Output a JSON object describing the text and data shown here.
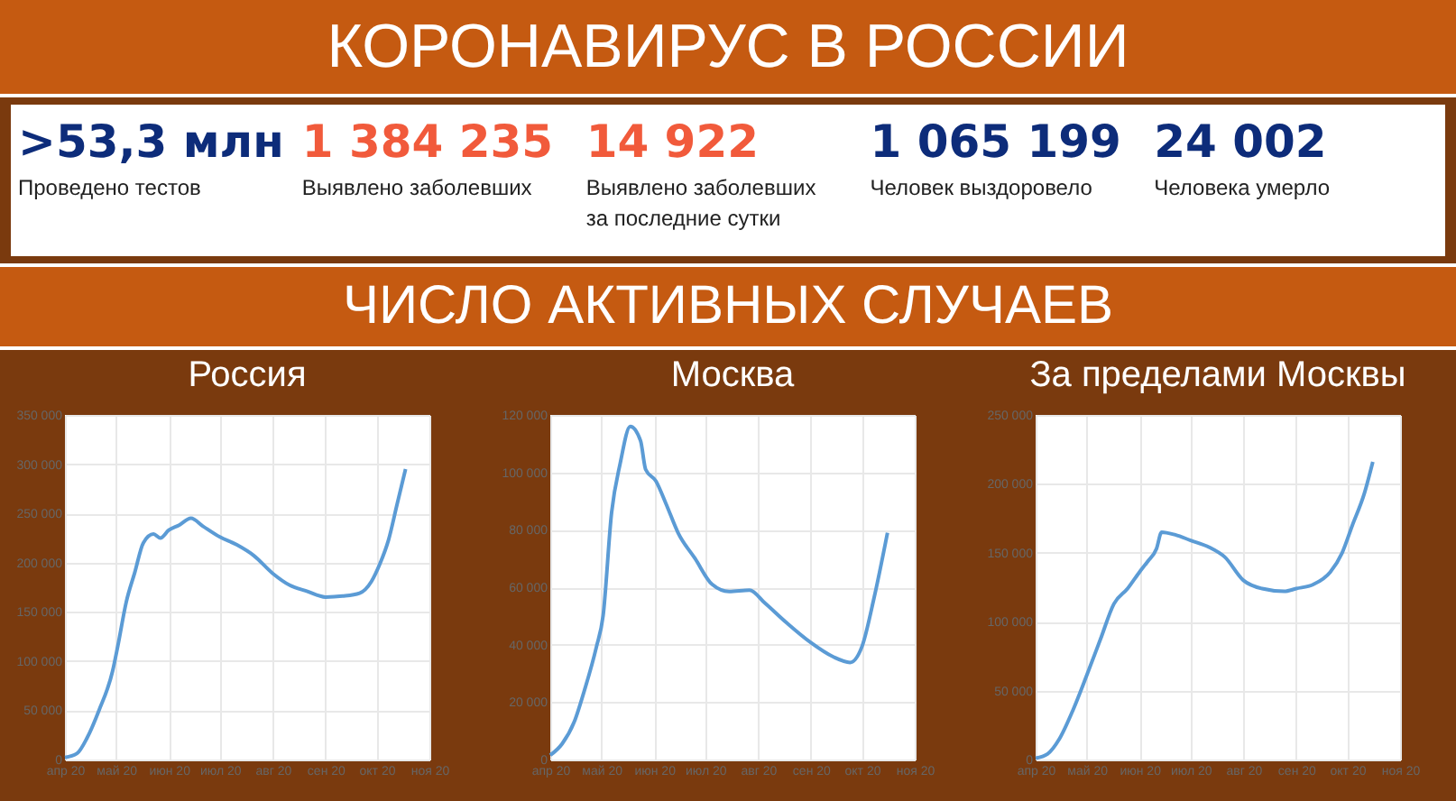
{
  "chart_data": [
    {
      "type": "other",
      "title": "КОРОНАВИРУС В РОССИИ",
      "subtitle": "ЧИСЛО АКТИВНЫХ СЛУЧАЕВ",
      "annotations": [
        ">53,3 млн",
        "Проведено тестов",
        "1 384 235",
        "Выявлено заболевших",
        "14 922",
        "Выявлено заболевших за последние сутки",
        "1 065 199",
        "Человек выздоровело",
        "24 002",
        "Человека умерло"
      ]
    },
    {
      "type": "line",
      "title": "Россия",
      "grid": true,
      "x": [
        "2020-04-01",
        "2020-04-08",
        "2020-04-14",
        "2020-04-21",
        "2020-04-29",
        "2020-05-02",
        "2020-05-07",
        "2020-05-12",
        "2020-05-17",
        "2020-05-23",
        "2020-05-27",
        "2020-06-01",
        "2020-06-07",
        "2020-06-14",
        "2020-06-21",
        "2020-07-01",
        "2020-07-11",
        "2020-07-21",
        "2020-08-01",
        "2020-08-11",
        "2020-08-21",
        "2020-09-01",
        "2020-09-11",
        "2020-09-21",
        "2020-09-28",
        "2020-10-03",
        "2020-10-08",
        "2020-10-13",
        "2020-10-18"
      ],
      "series": [
        {
          "color": "#5b9bd5",
          "values": [
            2000,
            6000,
            22000,
            50000,
            90000,
            115000,
            160000,
            190000,
            220000,
            229000,
            225000,
            233000,
            238000,
            245000,
            237000,
            226000,
            218000,
            207000,
            189000,
            177000,
            171000,
            165000,
            166000,
            169000,
            181000,
            199000,
            223000,
            259000,
            295000
          ]
        }
      ],
      "xlim": [
        "2020-04-01",
        "2020-11-01"
      ],
      "xticks": [
        {
          "value": "2020-04-01",
          "label": "апр 20"
        },
        {
          "value": "2020-05-01",
          "label": "май 20"
        },
        {
          "value": "2020-06-01",
          "label": "июн 20"
        },
        {
          "value": "2020-07-01",
          "label": "июл 20"
        },
        {
          "value": "2020-08-01",
          "label": "авг 20"
        },
        {
          "value": "2020-09-01",
          "label": "сен 20"
        },
        {
          "value": "2020-10-01",
          "label": "окт 20"
        },
        {
          "value": "2020-11-01",
          "label": "ноя 20"
        }
      ],
      "ylim": [
        0,
        350000
      ],
      "yticks": [
        0,
        50000,
        100000,
        150000,
        200000,
        250000,
        300000,
        350000
      ]
    },
    {
      "type": "line",
      "title": "Москва",
      "grid": true,
      "x": [
        "2020-04-01",
        "2020-04-08",
        "2020-04-15",
        "2020-04-21",
        "2020-04-28",
        "2020-05-02",
        "2020-05-07",
        "2020-05-12",
        "2020-05-18",
        "2020-05-24",
        "2020-05-27",
        "2020-06-02",
        "2020-06-08",
        "2020-06-15",
        "2020-06-25",
        "2020-07-05",
        "2020-07-15",
        "2020-07-27",
        "2020-08-05",
        "2020-08-18",
        "2020-09-01",
        "2020-09-14",
        "2020-09-24",
        "2020-10-01",
        "2020-10-08",
        "2020-10-16"
      ],
      "series": [
        {
          "color": "#5b9bd5",
          "values": [
            1500,
            5500,
            13000,
            24000,
            39000,
            50000,
            86000,
            103000,
            116000,
            111000,
            101000,
            97000,
            89000,
            79000,
            70000,
            61000,
            58500,
            59000,
            54500,
            47500,
            40700,
            35800,
            33800,
            39300,
            56000,
            79000
          ]
        }
      ],
      "xlim": [
        "2020-04-01",
        "2020-11-01"
      ],
      "xticks": [
        {
          "value": "2020-04-01",
          "label": "апр 20"
        },
        {
          "value": "2020-05-01",
          "label": "май 20"
        },
        {
          "value": "2020-06-01",
          "label": "июн 20"
        },
        {
          "value": "2020-07-01",
          "label": "июл 20"
        },
        {
          "value": "2020-08-01",
          "label": "авг 20"
        },
        {
          "value": "2020-09-01",
          "label": "сен 20"
        },
        {
          "value": "2020-10-01",
          "label": "окт 20"
        },
        {
          "value": "2020-11-01",
          "label": "ноя 20"
        }
      ],
      "ylim": [
        0,
        120000
      ],
      "yticks": [
        0,
        20000,
        40000,
        60000,
        80000,
        100000,
        120000
      ]
    },
    {
      "type": "line",
      "title": "За пределами Москвы",
      "grid": true,
      "x": [
        "2020-04-01",
        "2020-04-08",
        "2020-04-15",
        "2020-04-23",
        "2020-05-01",
        "2020-05-09",
        "2020-05-17",
        "2020-05-25",
        "2020-06-01",
        "2020-06-06",
        "2020-06-11",
        "2020-06-14",
        "2020-06-22",
        "2020-07-01",
        "2020-07-12",
        "2020-07-21",
        "2020-08-01",
        "2020-08-12",
        "2020-08-25",
        "2020-09-01",
        "2020-09-11",
        "2020-09-21",
        "2020-09-28",
        "2020-10-04",
        "2020-10-11",
        "2020-10-16"
      ],
      "series": [
        {
          "color": "#5b9bd5",
          "values": [
            1000,
            4000,
            15000,
            36000,
            61000,
            87000,
            113000,
            124000,
            136000,
            144000,
            153000,
            165000,
            163000,
            159000,
            154000,
            147000,
            130000,
            124000,
            122000,
            124000,
            127000,
            136000,
            150000,
            170000,
            193000,
            216000
          ]
        }
      ],
      "xlim": [
        "2020-04-01",
        "2020-11-01"
      ],
      "xticks": [
        {
          "value": "2020-04-01",
          "label": "апр 20"
        },
        {
          "value": "2020-05-01",
          "label": "май 20"
        },
        {
          "value": "2020-06-01",
          "label": "июн 20"
        },
        {
          "value": "2020-07-01",
          "label": "июл 20"
        },
        {
          "value": "2020-08-01",
          "label": "авг 20"
        },
        {
          "value": "2020-09-01",
          "label": "сен 20"
        },
        {
          "value": "2020-10-01",
          "label": "окт 20"
        },
        {
          "value": "2020-11-01",
          "label": "ноя 20"
        }
      ],
      "ylim": [
        0,
        250000
      ],
      "yticks": [
        0,
        50000,
        100000,
        150000,
        200000,
        250000
      ]
    }
  ]
}
